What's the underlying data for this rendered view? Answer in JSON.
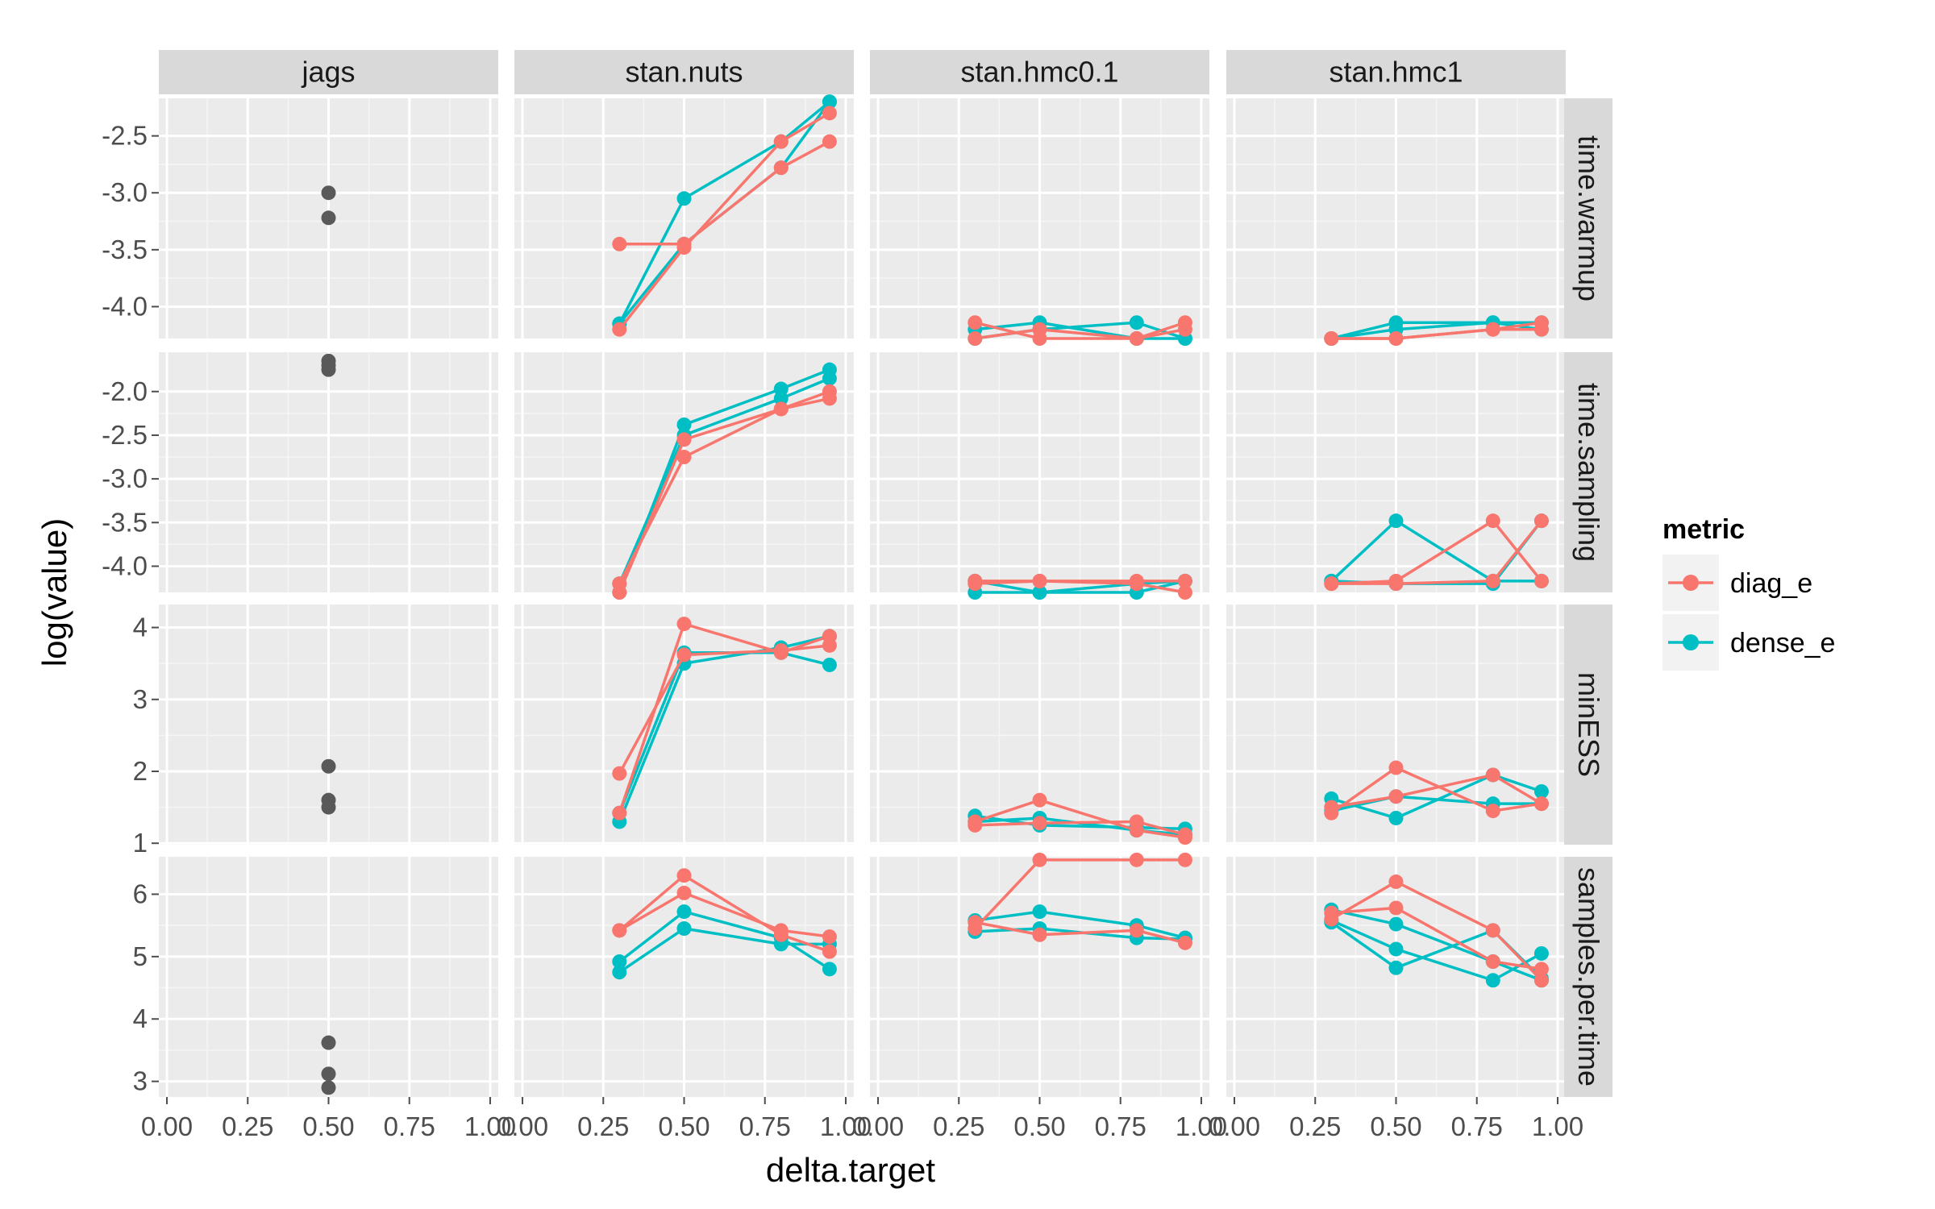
{
  "chart_data": {
    "type": "line",
    "xlabel": "delta.target",
    "ylabel": "log(value)",
    "columns": [
      "jags",
      "stan.nuts",
      "stan.hmc0.1",
      "stan.hmc1"
    ],
    "rows": [
      "time.warmup",
      "time.sampling",
      "minESS",
      "samples.per.time"
    ],
    "x_ticks": [
      0,
      0.25,
      0.5,
      0.75,
      1
    ],
    "x_tick_labels": [
      "0.00",
      "0.25",
      "0.50",
      "0.75",
      "1.00"
    ],
    "xlim": [
      -0.025,
      1.025
    ],
    "row_axes": [
      {
        "ylim": [
          -4.28,
          -2.17
        ],
        "ticks": [
          -2.5,
          -3.0,
          -3.5,
          -4.0
        ],
        "tick_labels": [
          "-2.5",
          "-3.0",
          "-3.5",
          "-4.0"
        ]
      },
      {
        "ylim": [
          -4.3,
          -1.55
        ],
        "ticks": [
          -2.0,
          -2.5,
          -3.0,
          -3.5,
          -4.0
        ],
        "tick_labels": [
          "-2.0",
          "-2.5",
          "-3.0",
          "-3.5",
          "-4.0"
        ]
      },
      {
        "ylim": [
          0.98,
          4.32
        ],
        "ticks": [
          1,
          2,
          3,
          4
        ],
        "tick_labels": [
          "1",
          "2",
          "3",
          "4"
        ]
      },
      {
        "ylim": [
          2.75,
          6.6
        ],
        "ticks": [
          3,
          4,
          5,
          6
        ],
        "tick_labels": [
          "3",
          "4",
          "5",
          "6"
        ]
      }
    ],
    "legend": {
      "title": "metric",
      "position": "right",
      "items": [
        {
          "label": "diag_e",
          "color": "#F8766D"
        },
        {
          "label": "dense_e",
          "color": "#00BFC4"
        }
      ]
    },
    "jags_color": "#595959",
    "jags_points": [
      {
        "row": 0,
        "x": 0.5,
        "y": [
          -3.0,
          -3.22
        ]
      },
      {
        "row": 1,
        "x": 0.5,
        "y": [
          -1.65,
          -1.7,
          -1.75
        ]
      },
      {
        "row": 2,
        "x": 0.5,
        "y": [
          2.07,
          1.6,
          1.5
        ]
      },
      {
        "row": 3,
        "x": 0.5,
        "y": [
          3.62,
          3.12,
          2.9
        ]
      }
    ],
    "x_values": [
      0.3,
      0.5,
      0.8,
      0.95
    ],
    "series": [
      {
        "row": 0,
        "col": 1,
        "metric": "diag_e",
        "y": [
          -3.45,
          -3.45,
          -2.78,
          -2.55
        ]
      },
      {
        "row": 0,
        "col": 1,
        "metric": "diag_e",
        "y": [
          -4.2,
          -3.48,
          -2.55,
          -2.3
        ]
      },
      {
        "row": 0,
        "col": 1,
        "metric": "dense_e",
        "y": [
          -4.15,
          -3.05,
          -2.55,
          -2.2
        ]
      },
      {
        "row": 0,
        "col": 1,
        "metric": "dense_e",
        "y": [
          -4.15,
          -3.45,
          -2.78,
          -2.2
        ]
      },
      {
        "row": 0,
        "col": 2,
        "metric": "diag_e",
        "y": [
          -4.14,
          -4.28,
          -4.28,
          -4.14
        ]
      },
      {
        "row": 0,
        "col": 2,
        "metric": "diag_e",
        "y": [
          -4.28,
          -4.2,
          -4.28,
          -4.2
        ]
      },
      {
        "row": 0,
        "col": 2,
        "metric": "dense_e",
        "y": [
          -4.2,
          -4.14,
          -4.28,
          -4.28
        ]
      },
      {
        "row": 0,
        "col": 2,
        "metric": "dense_e",
        "y": [
          -4.28,
          -4.2,
          -4.14,
          -4.28
        ]
      },
      {
        "row": 0,
        "col": 3,
        "metric": "diag_e",
        "y": [
          -4.28,
          -4.28,
          -4.2,
          -4.14
        ]
      },
      {
        "row": 0,
        "col": 3,
        "metric": "diag_e",
        "y": [
          -4.28,
          -4.28,
          -4.2,
          -4.2
        ]
      },
      {
        "row": 0,
        "col": 3,
        "metric": "dense_e",
        "y": [
          -4.28,
          -4.14,
          -4.14,
          -4.14
        ]
      },
      {
        "row": 0,
        "col": 3,
        "metric": "dense_e",
        "y": [
          -4.28,
          -4.2,
          -4.14,
          -4.2
        ]
      },
      {
        "row": 1,
        "col": 1,
        "metric": "diag_e",
        "y": [
          -4.2,
          -2.75,
          -2.2,
          -2.0
        ]
      },
      {
        "row": 1,
        "col": 1,
        "metric": "diag_e",
        "y": [
          -4.3,
          -2.55,
          -2.2,
          -2.08
        ]
      },
      {
        "row": 1,
        "col": 1,
        "metric": "dense_e",
        "y": [
          -4.3,
          -2.38,
          -1.97,
          -1.75
        ]
      },
      {
        "row": 1,
        "col": 1,
        "metric": "dense_e",
        "y": [
          -4.2,
          -2.5,
          -2.08,
          -1.85
        ]
      },
      {
        "row": 1,
        "col": 2,
        "metric": "diag_e",
        "y": [
          -4.17,
          -4.17,
          -4.17,
          -4.17
        ]
      },
      {
        "row": 1,
        "col": 2,
        "metric": "diag_e",
        "y": [
          -4.2,
          -4.17,
          -4.2,
          -4.3
        ]
      },
      {
        "row": 1,
        "col": 2,
        "metric": "dense_e",
        "y": [
          -4.17,
          -4.3,
          -4.2,
          -4.17
        ]
      },
      {
        "row": 1,
        "col": 2,
        "metric": "dense_e",
        "y": [
          -4.3,
          -4.3,
          -4.3,
          -4.17
        ]
      },
      {
        "row": 1,
        "col": 3,
        "metric": "diag_e",
        "y": [
          -4.2,
          -4.17,
          -3.48,
          -4.17
        ]
      },
      {
        "row": 1,
        "col": 3,
        "metric": "diag_e",
        "y": [
          -4.2,
          -4.2,
          -4.17,
          -3.48
        ]
      },
      {
        "row": 1,
        "col": 3,
        "metric": "dense_e",
        "y": [
          -4.17,
          -3.48,
          -4.17,
          -4.17
        ]
      },
      {
        "row": 1,
        "col": 3,
        "metric": "dense_e",
        "y": [
          -4.17,
          -4.2,
          -4.2,
          -3.48
        ]
      },
      {
        "row": 2,
        "col": 1,
        "metric": "diag_e",
        "y": [
          1.42,
          4.05,
          3.65,
          3.88
        ]
      },
      {
        "row": 2,
        "col": 1,
        "metric": "diag_e",
        "y": [
          1.97,
          3.62,
          3.68,
          3.75
        ]
      },
      {
        "row": 2,
        "col": 1,
        "metric": "dense_e",
        "y": [
          1.3,
          3.5,
          3.72,
          3.88
        ]
      },
      {
        "row": 2,
        "col": 1,
        "metric": "dense_e",
        "y": [
          1.42,
          3.65,
          3.65,
          3.48
        ]
      },
      {
        "row": 2,
        "col": 2,
        "metric": "diag_e",
        "y": [
          1.3,
          1.6,
          1.18,
          1.08
        ]
      },
      {
        "row": 2,
        "col": 2,
        "metric": "diag_e",
        "y": [
          1.25,
          1.28,
          1.3,
          1.12
        ]
      },
      {
        "row": 2,
        "col": 2,
        "metric": "dense_e",
        "y": [
          1.38,
          1.25,
          1.22,
          1.2
        ]
      },
      {
        "row": 2,
        "col": 2,
        "metric": "dense_e",
        "y": [
          1.3,
          1.35,
          1.18,
          1.12
        ]
      },
      {
        "row": 2,
        "col": 3,
        "metric": "diag_e",
        "y": [
          1.42,
          2.05,
          1.45,
          1.55
        ]
      },
      {
        "row": 2,
        "col": 3,
        "metric": "diag_e",
        "y": [
          1.5,
          1.65,
          1.95,
          1.55
        ]
      },
      {
        "row": 2,
        "col": 3,
        "metric": "dense_e",
        "y": [
          1.62,
          1.35,
          1.95,
          1.72
        ]
      },
      {
        "row": 2,
        "col": 3,
        "metric": "dense_e",
        "y": [
          1.45,
          1.65,
          1.55,
          1.55
        ]
      },
      {
        "row": 3,
        "col": 1,
        "metric": "diag_e",
        "y": [
          5.42,
          6.02,
          5.42,
          5.32
        ]
      },
      {
        "row": 3,
        "col": 1,
        "metric": "diag_e",
        "y": [
          5.42,
          6.3,
          5.35,
          5.08
        ]
      },
      {
        "row": 3,
        "col": 1,
        "metric": "dense_e",
        "y": [
          4.92,
          5.72,
          5.3,
          4.8
        ]
      },
      {
        "row": 3,
        "col": 1,
        "metric": "dense_e",
        "y": [
          4.75,
          5.45,
          5.2,
          5.2
        ]
      },
      {
        "row": 3,
        "col": 2,
        "metric": "diag_e",
        "y": [
          5.45,
          6.55,
          6.55,
          6.55
        ]
      },
      {
        "row": 3,
        "col": 2,
        "metric": "diag_e",
        "y": [
          5.55,
          5.35,
          5.42,
          5.22
        ]
      },
      {
        "row": 3,
        "col": 2,
        "metric": "dense_e",
        "y": [
          5.58,
          5.72,
          5.5,
          5.3
        ]
      },
      {
        "row": 3,
        "col": 2,
        "metric": "dense_e",
        "y": [
          5.4,
          5.45,
          5.3,
          5.28
        ]
      },
      {
        "row": 3,
        "col": 3,
        "metric": "diag_e",
        "y": [
          5.6,
          6.2,
          5.42,
          4.62
        ]
      },
      {
        "row": 3,
        "col": 3,
        "metric": "diag_e",
        "y": [
          5.7,
          5.78,
          4.92,
          4.8
        ]
      },
      {
        "row": 3,
        "col": 3,
        "metric": "dense_e",
        "y": [
          5.58,
          5.12,
          4.62,
          5.05
        ]
      },
      {
        "row": 3,
        "col": 3,
        "metric": "dense_e",
        "y": [
          5.75,
          5.52,
          4.92,
          4.62
        ]
      },
      {
        "row": 3,
        "col": 3,
        "metric": "dense_e",
        "y": [
          5.55,
          4.82,
          5.42,
          4.65
        ]
      }
    ]
  }
}
